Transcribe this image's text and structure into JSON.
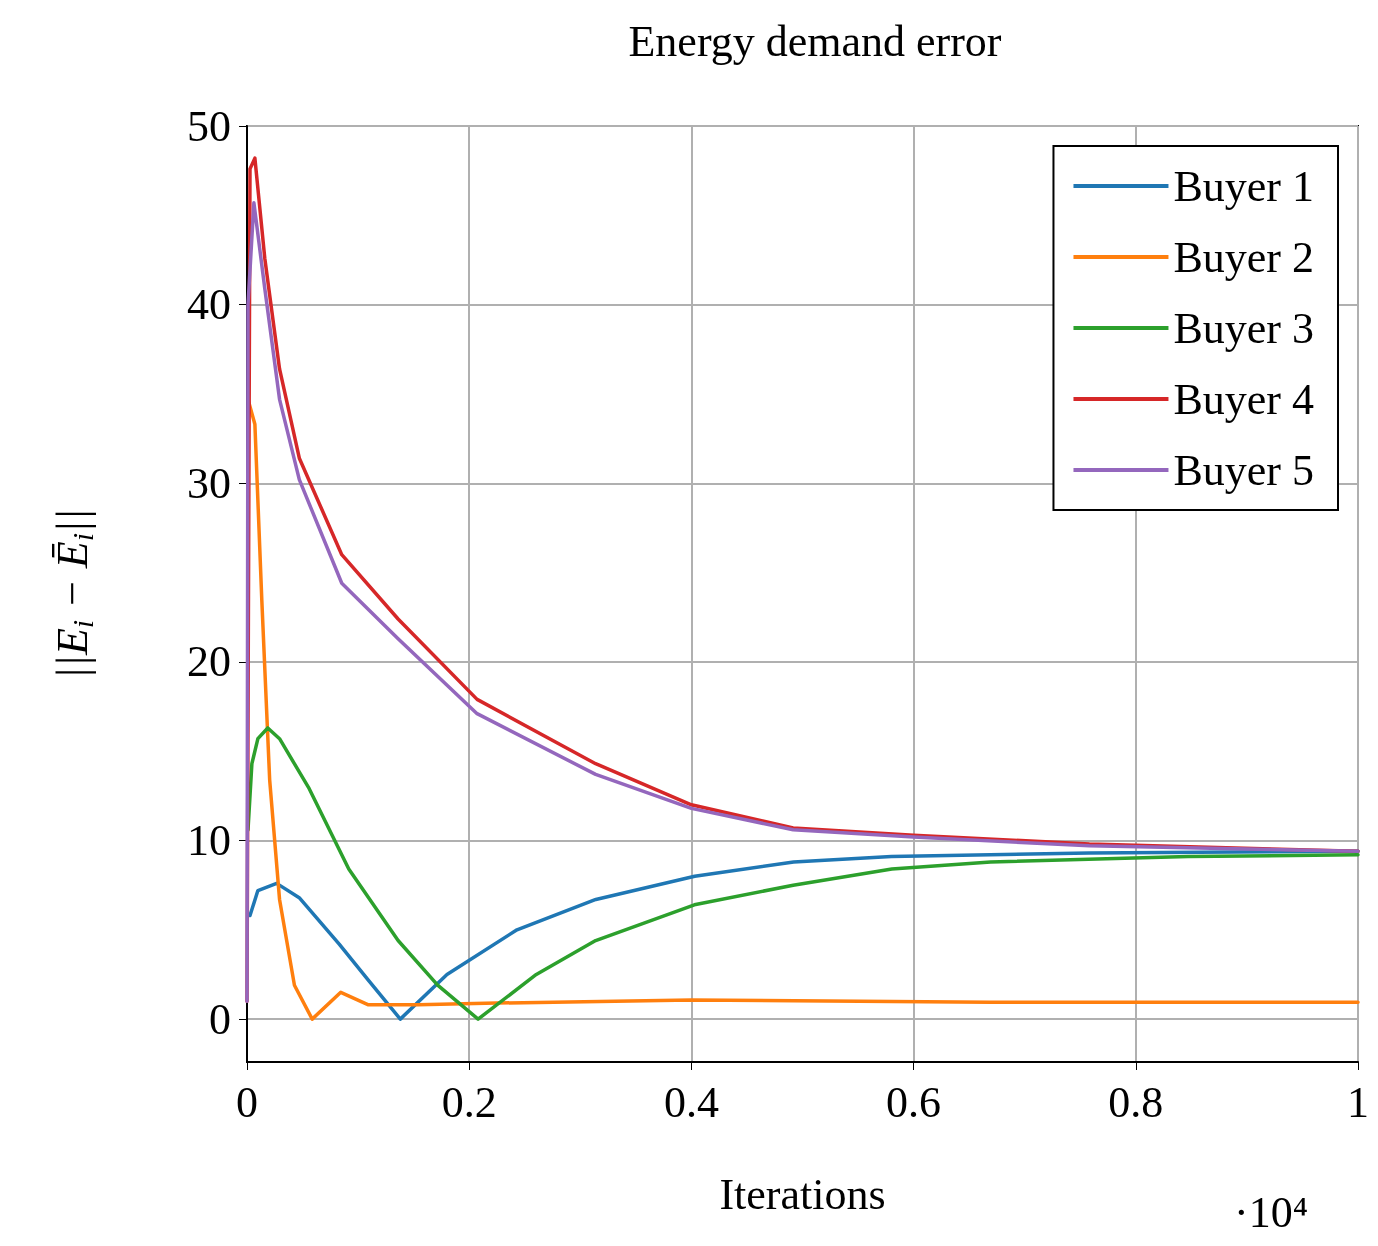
{
  "chart_data": {
    "type": "line",
    "title": "Energy demand error",
    "xlabel": "Iterations",
    "ylabel": "||E$_{i}$ − Ē$_{i}$||",
    "annotations": [
      "·10⁴"
    ],
    "xlim": [
      0,
      1
    ],
    "xticks": [
      0,
      0.2,
      0.4,
      0.6,
      0.8,
      1
    ],
    "ylim": [
      -2.4,
      50
    ],
    "yticks": [
      0,
      10,
      20,
      30,
      40,
      50
    ],
    "grid": true,
    "legend": "top right",
    "series": [
      {
        "name": "Buyer 1",
        "color": "#1f77b4",
        "x": [
          0.0027,
          0.0098,
          0.0267,
          0.047,
          0.083,
          0.109,
          0.138,
          0.18,
          0.243,
          0.314,
          0.403,
          0.492,
          0.58,
          0.669,
          0.758,
          1
        ],
        "values": [
          5.8,
          7.2,
          7.6,
          6.8,
          4.2,
          2.2,
          0,
          2.5,
          5.0,
          6.7,
          8.0,
          8.8,
          9.1,
          9.2,
          9.3,
          9.4
        ]
      },
      {
        "name": "Buyer 2",
        "color": "#ff7f0e",
        "x": [
          0.0018,
          0.0071,
          0.0133,
          0.0204,
          0.0293,
          0.0427,
          0.0587,
          0.0844,
          0.1093,
          0.1538,
          0.2249,
          0.4,
          0.6684,
          1
        ],
        "values": [
          34.5,
          33.3,
          23.5,
          13.4,
          6.7,
          1.9,
          0,
          1.5,
          0.8,
          0.8,
          0.9,
          1.07,
          0.95,
          0.95
        ]
      },
      {
        "name": "Buyer 3",
        "color": "#2ca02c",
        "x": [
          0.0009,
          0.0044,
          0.0098,
          0.0187,
          0.0293,
          0.056,
          0.0916,
          0.136,
          0.1716,
          0.208,
          0.2604,
          0.3138,
          0.4027,
          0.4916,
          0.5804,
          0.6693,
          0.8471,
          1
        ],
        "values": [
          10.6,
          14.3,
          15.7,
          16.3,
          15.7,
          12.9,
          8.4,
          4.4,
          1.9,
          0,
          2.5,
          4.4,
          6.4,
          7.5,
          8.4,
          8.8,
          9.1,
          9.2
        ]
      },
      {
        "name": "Buyer 4",
        "color": "#d62728",
        "x": [
          0,
          0.0027,
          0.0071,
          0.016,
          0.0293,
          0.0471,
          0.0853,
          0.136,
          0.2071,
          0.3138,
          0.4,
          0.4916,
          0.6,
          0.7582,
          1
        ],
        "values": [
          1.0,
          47.6,
          48.2,
          42.6,
          36.4,
          31.4,
          26.0,
          22.4,
          17.9,
          14.3,
          12.0,
          10.7,
          10.3,
          9.8,
          9.4
        ]
      },
      {
        "name": "Buyer 5",
        "color": "#9467bd",
        "x": [
          0,
          0.0009,
          0.0062,
          0.016,
          0.0293,
          0.0471,
          0.0853,
          0.136,
          0.2071,
          0.3138,
          0.4,
          0.4916,
          0.6,
          0.7582,
          1
        ],
        "values": [
          1.0,
          40.0,
          45.7,
          40.9,
          34.7,
          30.2,
          24.4,
          21.3,
          17.1,
          13.7,
          11.8,
          10.6,
          10.2,
          9.7,
          9.4
        ]
      }
    ]
  }
}
